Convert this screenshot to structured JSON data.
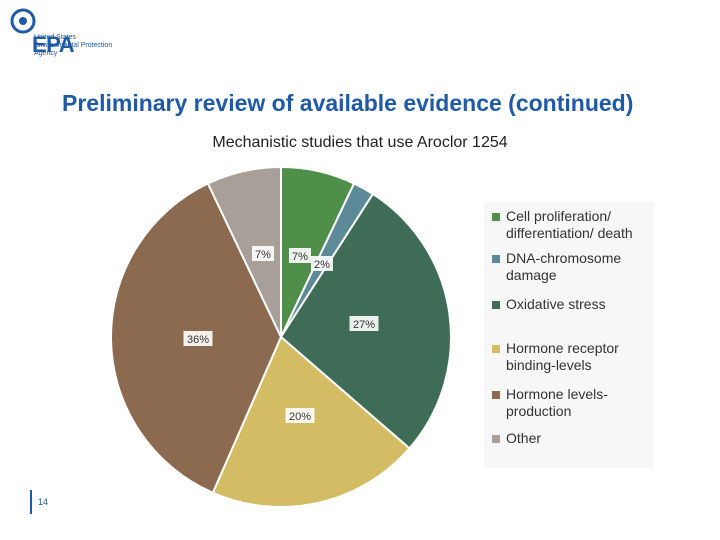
{
  "header": {
    "logo_text": "EPA",
    "agency_lines": [
      "United States",
      "Environmental Protection",
      "Agency"
    ]
  },
  "slide": {
    "heading": "Preliminary review of available evidence (continued)",
    "page_number": "14"
  },
  "chart_data": {
    "type": "pie",
    "title": "Mechanistic studies that use Aroclor 1254",
    "slices": [
      {
        "name": "Cell proliferation/ differentiation/ death",
        "value": 7,
        "label": "7%",
        "color": "#4f8f4a"
      },
      {
        "name": "DNA-chromosome damage",
        "value": 2,
        "label": "2%",
        "color": "#5d8a99"
      },
      {
        "name": "Oxidative stress",
        "value": 27,
        "label": "27%",
        "color": "#3f6c57"
      },
      {
        "name": "Hormone receptor binding-levels",
        "value": 20,
        "label": "20%",
        "color": "#d4bc64"
      },
      {
        "name": "Hormone levels-production",
        "value": 36,
        "label": "36%",
        "color": "#8b6a50"
      },
      {
        "name": "Other",
        "value": 7,
        "label": "7%",
        "color": "#a89f98"
      }
    ],
    "legend": {
      "placement": "right",
      "items": [
        {
          "lines": [
            "Cell proliferation/",
            "differentiation/ death"
          ],
          "color": "#4f8f4a"
        },
        {
          "lines": [
            "DNA-chromosome",
            "damage"
          ],
          "color": "#5d8a99"
        },
        {
          "lines": [
            "Oxidative stress"
          ],
          "color": "#3f6c57"
        },
        {
          "lines": [
            "Hormone receptor",
            "binding-levels"
          ],
          "color": "#d4bc64"
        },
        {
          "lines": [
            "Hormone levels-",
            "production"
          ],
          "color": "#8b6a50"
        },
        {
          "lines": [
            "Other"
          ],
          "color": "#a89f98"
        }
      ]
    }
  }
}
